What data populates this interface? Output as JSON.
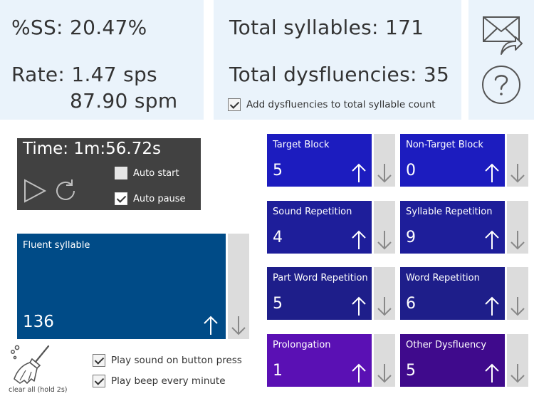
{
  "stats": {
    "ss": "%SS: 20.47%",
    "rate_sps": "Rate: 1.47 sps",
    "rate_spm": "87.90 spm",
    "total_syllables": "Total syllables: 171",
    "total_dysfluencies": "Total dysfluencies: 35",
    "add_dysfluencies_label": "Add dysfluencies to total syllable count",
    "add_dysfluencies_checked": true
  },
  "timer": {
    "time": "Time: 1m:56.72s",
    "auto_start_label": "Auto start",
    "auto_start_checked": false,
    "auto_pause_label": "Auto pause",
    "auto_pause_checked": true
  },
  "fluent": {
    "label": "Fluent syllable",
    "count": "136",
    "color": "#004b87"
  },
  "counters": [
    {
      "label": "Target Block",
      "count": "5",
      "color": "#1c1cbf"
    },
    {
      "label": "Non-Target Block",
      "count": "0",
      "color": "#1c1cbf"
    },
    {
      "label": "Sound Repetition",
      "count": "4",
      "color": "#1e1e9a"
    },
    {
      "label": "Syllable Repetition",
      "count": "9",
      "color": "#1e1e9a"
    },
    {
      "label": "Part Word Repetition",
      "count": "5",
      "color": "#1e1e8a"
    },
    {
      "label": "Word Repetition",
      "count": "6",
      "color": "#1e1e8a"
    },
    {
      "label": "Prolongation",
      "count": "1",
      "color": "#5a10b4"
    },
    {
      "label": "Other Dysfluency",
      "count": "5",
      "color": "#3f0a8c"
    }
  ],
  "options": {
    "play_sound_label": "Play sound on button press",
    "play_sound_checked": true,
    "play_beep_label": "Play beep every minute",
    "play_beep_checked": true
  },
  "clear": {
    "label": "clear all (hold 2s)"
  },
  "icons": {
    "email": "email-share-icon",
    "help": "help-icon",
    "play": "play-icon",
    "reset": "reset-icon",
    "broom": "broom-icon"
  }
}
